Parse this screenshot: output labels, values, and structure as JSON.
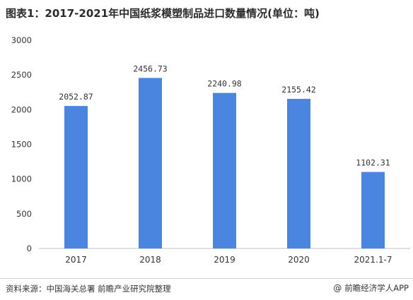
{
  "title": "图表1：2017-2021年中国纸浆模塑制品进口数量情况(单位：吨)",
  "chart_data": {
    "type": "bar",
    "title": "图表1：2017-2021年中国纸浆模塑制品进口数量情况(单位：吨)",
    "categories": [
      "2017",
      "2018",
      "2019",
      "2020",
      "2021.1-7"
    ],
    "values": [
      2052.87,
      2456.73,
      2240.98,
      2155.42,
      1102.31
    ],
    "value_labels": [
      "2052.87",
      "2456.73",
      "2240.98",
      "2155.42",
      "1102.31"
    ],
    "ylim": [
      0,
      3000
    ],
    "yticks": [
      "0",
      "500",
      "1000",
      "1500",
      "2000",
      "2500",
      "3000"
    ],
    "bar_color": "#4a86e0",
    "grid": false,
    "legend": "none"
  },
  "footer": {
    "source": "资料来源：中国海关总署 前瞻产业研究院整理",
    "credit_symbol": "@",
    "credit_text": "前瞻经济学人APP"
  }
}
